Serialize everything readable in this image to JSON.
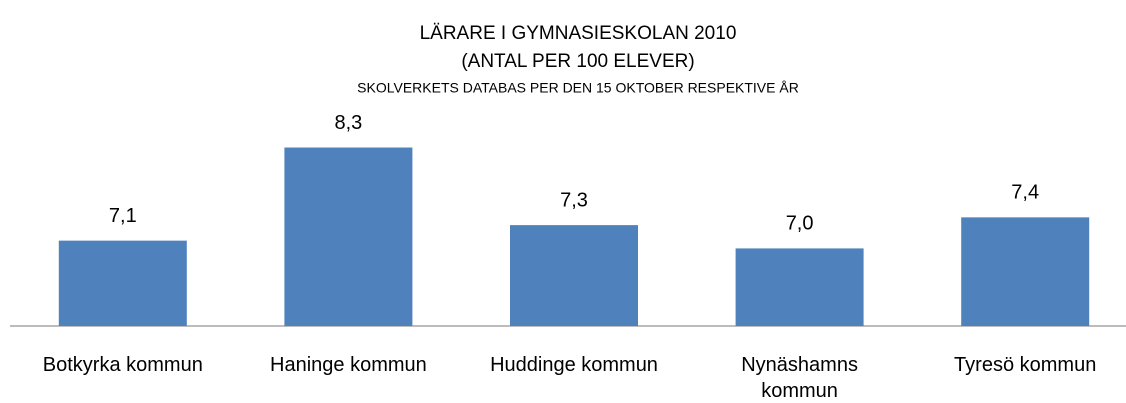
{
  "chart_data": {
    "type": "bar",
    "title": "LÄRARE I GYMNASIESKOLAN 2010",
    "subtitle": "(ANTAL PER 100 ELEVER)",
    "source": "SKOLVERKETS DATABAS PER DEN 15 OKTOBER RESPEKTIVE ÅR",
    "categories": [
      "Botkyrka kommun",
      "Haninge kommun",
      "Huddinge kommun",
      "Nynäshamns kommun",
      "Tyresö kommun"
    ],
    "values": [
      7.1,
      8.3,
      7.3,
      7.0,
      7.4
    ],
    "value_labels": [
      "7,1",
      "8,3",
      "7,3",
      "7,0",
      "7,4"
    ],
    "color": "#4f81bd",
    "ylim": [
      6,
      8.5
    ]
  }
}
